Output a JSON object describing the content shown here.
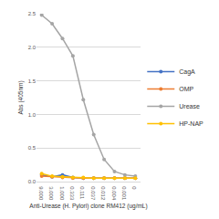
{
  "chart_data": {
    "type": "line",
    "x_label": "Anti-Urease (H. Pylori) clone RM412 (ug/mL)",
    "y_label": "Abs (405nm)",
    "categories": [
      "9.000",
      "3.000",
      "1.000",
      "0.333",
      "0.111",
      "0.037",
      "0.012",
      "0.004",
      "0.001",
      "0"
    ],
    "series": [
      {
        "name": "CagA",
        "color": "#4472c4",
        "values": [
          0.1,
          0.07,
          0.1,
          0.06,
          0.05,
          0.05,
          0.05,
          0.05,
          0.05,
          0.05
        ]
      },
      {
        "name": "OMP",
        "color": "#ed7d31",
        "values": [
          0.08,
          0.07,
          0.06,
          0.05,
          0.05,
          0.05,
          0.05,
          0.05,
          0.05,
          0.05
        ]
      },
      {
        "name": "Urease",
        "color": "#a5a5a5",
        "values": [
          2.48,
          2.35,
          2.13,
          1.87,
          1.22,
          0.7,
          0.33,
          0.15,
          0.1,
          0.08
        ]
      },
      {
        "name": "HP-NAP",
        "color": "#ffc000",
        "values": [
          0.12,
          0.08,
          0.07,
          0.06,
          0.06,
          0.05,
          0.05,
          0.05,
          0.05,
          0.05
        ]
      }
    ],
    "ylim": [
      0,
      2.5
    ],
    "yticks": [
      {
        "value": 0,
        "label": "0.0"
      },
      {
        "value": 0.5,
        "label": "0.5"
      },
      {
        "value": 1,
        "label": "1.0"
      },
      {
        "value": 1.5,
        "label": "1.5"
      },
      {
        "value": 2,
        "label": "2.0"
      },
      {
        "value": 2.5,
        "label": "2.5"
      }
    ],
    "grid": true,
    "legend": "right",
    "marker": "circle"
  }
}
